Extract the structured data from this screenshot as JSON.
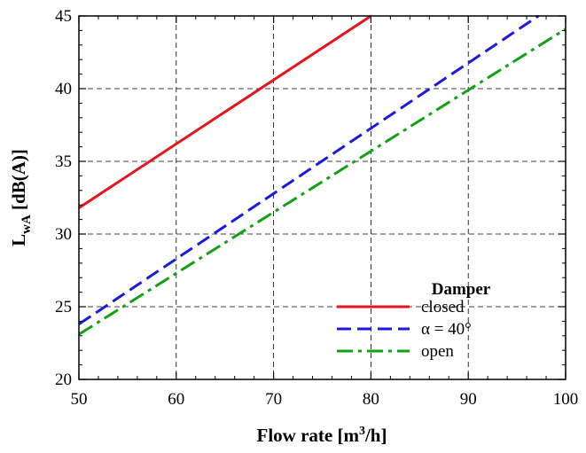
{
  "chart_data": {
    "type": "line",
    "xlabel": "Flow rate [m³/h]",
    "ylabel": "LwA [dB(A)]",
    "xlim": [
      50,
      100
    ],
    "ylim": [
      20,
      45
    ],
    "xticks": [
      50,
      60,
      70,
      80,
      90,
      100
    ],
    "yticks": [
      20,
      25,
      30,
      35,
      40,
      45
    ],
    "grid": true,
    "legend": {
      "title": "Damper",
      "position": "bottom-right"
    },
    "series": [
      {
        "name": "closed",
        "color": "#e8141c",
        "dash": "solid",
        "x": [
          50,
          80
        ],
        "y": [
          31.8,
          45.0
        ]
      },
      {
        "name": "α = 40°",
        "color": "#1a1adf",
        "dash": "dashed",
        "x": [
          50,
          97.2
        ],
        "y": [
          23.8,
          45.0
        ]
      },
      {
        "name": "open",
        "color": "#14a014",
        "dash": "dashdot",
        "x": [
          50,
          100
        ],
        "y": [
          23.1,
          44.1
        ]
      }
    ]
  }
}
